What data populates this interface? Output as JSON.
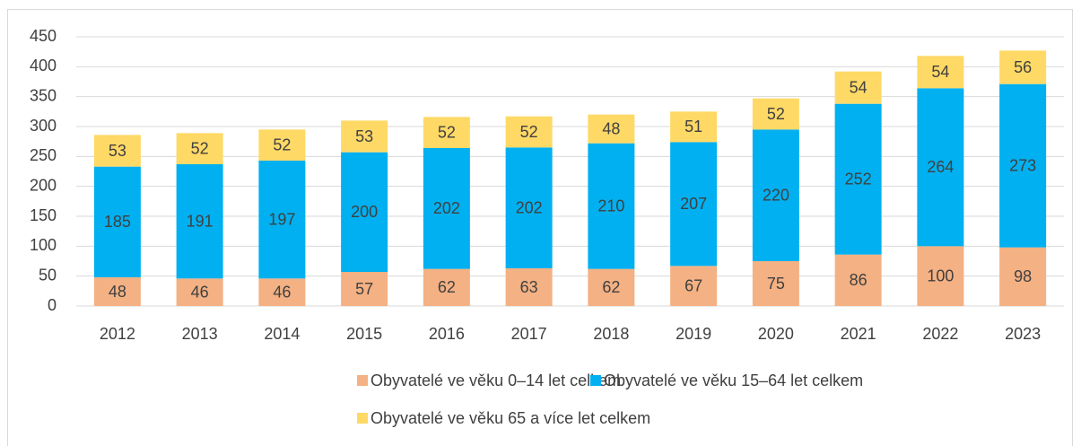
{
  "chart_data": {
    "type": "stacked_bar",
    "categories": [
      "2012",
      "2013",
      "2014",
      "2015",
      "2016",
      "2017",
      "2018",
      "2019",
      "2020",
      "2021",
      "2022",
      "2023"
    ],
    "series": [
      {
        "name": "Obyvatelé ve věku 0–14 let celkem",
        "color": "#f4b183",
        "values": [
          48,
          46,
          46,
          57,
          62,
          63,
          62,
          67,
          75,
          86,
          100,
          98
        ]
      },
      {
        "name": "Obyvatelé ve věku 15–64 let celkem",
        "color": "#00b0f0",
        "values": [
          185,
          191,
          197,
          200,
          202,
          202,
          210,
          207,
          220,
          252,
          264,
          273
        ]
      },
      {
        "name": "Obyvatelé ve věku 65 a více let celkem",
        "color": "#ffd966",
        "values": [
          53,
          52,
          52,
          53,
          52,
          52,
          48,
          51,
          52,
          54,
          54,
          56
        ]
      }
    ],
    "ylim": [
      0,
      450
    ],
    "yticks": [
      0,
      50,
      100,
      150,
      200,
      250,
      300,
      350,
      400,
      450
    ],
    "grid": true,
    "legend": "bottom"
  }
}
